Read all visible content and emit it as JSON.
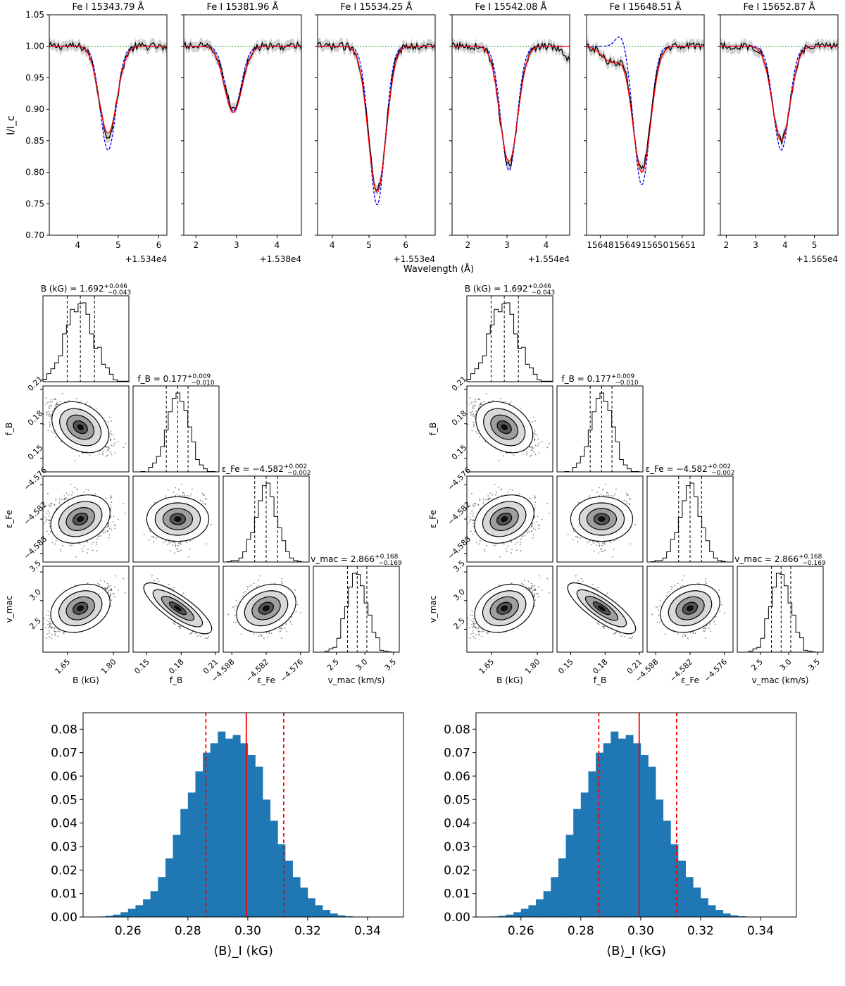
{
  "figure": {
    "spectra": {
      "ylabel": "I/I_c",
      "xlabel": "Wavelength (Å)",
      "y_ticks": [
        "1.05",
        "1.00",
        "0.95",
        "0.90",
        "0.85",
        "0.80",
        "0.75",
        "0.70"
      ],
      "ylim": [
        0.7,
        1.05
      ],
      "continuum_level": 1.0,
      "legend_colors": {
        "observed": "#000000",
        "best_fit": "#ff0000",
        "zero_field": "#0000ff",
        "continuum": "#2ca02c",
        "uncertainty": "#bdbdbd"
      }
    },
    "corner_params": [
      {
        "key": "B",
        "label": "B (kG)",
        "title": "B (kG) = 1.692",
        "err_up": "+0.046",
        "err_down": "−0.043",
        "ticks": [
          "1.65",
          "1.80"
        ],
        "tick_values": [
          1.65,
          1.8
        ],
        "range": [
          1.57,
          1.85
        ],
        "median": 1.692,
        "sigma": 0.045,
        "quantiles": [
          1.649,
          1.692,
          1.738
        ]
      },
      {
        "key": "fB",
        "label": "f_B",
        "title": "f_B = 0.177",
        "err_up": "+0.009",
        "err_down": "−0.010",
        "ticks": [
          "0.15",
          "0.18",
          "0.21"
        ],
        "tick_values": [
          0.15,
          0.18,
          0.21
        ],
        "range": [
          0.138,
          0.213
        ],
        "median": 0.177,
        "sigma": 0.0095,
        "quantiles": [
          0.167,
          0.177,
          0.186
        ]
      },
      {
        "key": "eFe",
        "label": "ε_Fe",
        "title": "ε_Fe = −4.582",
        "err_up": "+0.002",
        "err_down": "−0.002",
        "ticks": [
          "−4.588",
          "−4.582",
          "−4.576"
        ],
        "tick_values": [
          -4.588,
          -4.582,
          -4.576
        ],
        "range": [
          -4.5895,
          -4.5745
        ],
        "median": -4.582,
        "sigma": 0.002,
        "quantiles": [
          -4.584,
          -4.582,
          -4.58
        ]
      },
      {
        "key": "vmac",
        "label": "v_mac (km/s)",
        "title": "v_mac = 2.866",
        "err_up": "+0.168",
        "err_down": "−0.169",
        "ticks": [
          "2.5",
          "3.0",
          "3.5"
        ],
        "tick_values": [
          2.5,
          3.0,
          3.5
        ],
        "range": [
          2.1,
          3.6
        ],
        "median": 2.866,
        "sigma": 0.168,
        "quantiles": [
          2.697,
          2.866,
          3.034
        ]
      }
    ],
    "corner_ylabels": [
      "f_B",
      "ε_Fe",
      "v_mac"
    ],
    "bottom_hist": {
      "xlabel": "⟨B⟩_I (kG)"
    }
  },
  "chart_data": [
    {
      "type": "line",
      "title": "Fe I 15343.79 Å",
      "ylabel": "I/I_c",
      "xlabel": "Wavelength (Å)",
      "ylim": [
        0.7,
        1.05
      ],
      "xlim": [
        3.3,
        6.2
      ],
      "x_ticks": [
        "4",
        "5",
        "6"
      ],
      "x_tick_values": [
        4,
        5,
        6
      ],
      "x_offset": "+1.534e4",
      "line_center": 4.75,
      "observed_depth": 0.142,
      "model_depth": 0.138,
      "zero_field_depth": 0.165
    },
    {
      "type": "line",
      "title": "Fe I 15381.96 Å",
      "xlim": [
        1.7,
        4.6
      ],
      "x_ticks": [
        "2",
        "3",
        "4"
      ],
      "x_tick_values": [
        2,
        3,
        4
      ],
      "x_offset": "+1.538e4",
      "line_center": 2.92,
      "observed_depth": 0.098,
      "model_depth": 0.105,
      "zero_field_depth": 0.103
    },
    {
      "type": "line",
      "title": "Fe I 15534.25 Å",
      "xlim": [
        3.6,
        6.8
      ],
      "x_ticks": [
        "4",
        "5",
        "6"
      ],
      "x_tick_values": [
        4,
        5,
        6
      ],
      "x_offset": "+1.553e4",
      "line_center": 5.22,
      "observed_depth": 0.225,
      "model_depth": 0.232,
      "zero_field_depth": 0.252
    },
    {
      "type": "line",
      "title": "Fe I 15542.08 Å",
      "xlim": [
        1.6,
        4.6
      ],
      "x_ticks": [
        "2",
        "3",
        "4"
      ],
      "x_tick_values": [
        2,
        3,
        4
      ],
      "x_offset": "+1.554e4",
      "line_center": 3.05,
      "observed_depth": 0.19,
      "model_depth": 0.183,
      "zero_field_depth": 0.197
    },
    {
      "type": "line",
      "title": "Fe I 15648.51 Å",
      "xlim": [
        15647.5,
        15651.8
      ],
      "x_ticks": [
        "15648",
        "15649",
        "15650",
        "15651"
      ],
      "x_tick_values": [
        15648,
        15649,
        15650,
        15651
      ],
      "x_offset": "",
      "line_center": 15649.52,
      "observed_depth": 0.195,
      "model_depth": 0.2,
      "zero_field_depth": 0.22
    },
    {
      "type": "line",
      "title": "Fe I 15652.87 Å",
      "xlim": [
        1.8,
        5.8
      ],
      "x_ticks": [
        "2",
        "3",
        "4",
        "5"
      ],
      "x_tick_values": [
        2,
        3,
        4,
        5
      ],
      "x_offset": "+1.565e4",
      "line_center": 3.87,
      "observed_depth": 0.15,
      "model_depth": 0.15,
      "zero_field_depth": 0.165
    },
    {
      "type": "bar",
      "title": "",
      "xlabel": "⟨B⟩_I (kG)",
      "ylabel": "",
      "xlim": [
        0.245,
        0.352
      ],
      "ylim": [
        0,
        0.087
      ],
      "x_ticks": [
        "0.26",
        "0.28",
        "0.30",
        "0.32",
        "0.34"
      ],
      "x_tick_values": [
        0.26,
        0.28,
        0.3,
        0.32,
        0.34
      ],
      "y_ticks": [
        "0.00",
        "0.01",
        "0.02",
        "0.03",
        "0.04",
        "0.05",
        "0.06",
        "0.07",
        "0.08"
      ],
      "y_tick_values": [
        0,
        0.01,
        0.02,
        0.03,
        0.04,
        0.05,
        0.06,
        0.07,
        0.08
      ],
      "bin_width": 0.0025,
      "bins_start": 0.25,
      "values": [
        0.0002,
        0.0005,
        0.001,
        0.002,
        0.0035,
        0.005,
        0.0075,
        0.011,
        0.017,
        0.025,
        0.035,
        0.046,
        0.053,
        0.062,
        0.07,
        0.074,
        0.079,
        0.076,
        0.0775,
        0.074,
        0.069,
        0.064,
        0.05,
        0.041,
        0.031,
        0.024,
        0.017,
        0.0125,
        0.008,
        0.005,
        0.003,
        0.0015,
        0.0007,
        0.0003
      ],
      "median": 0.2995,
      "lower": 0.286,
      "upper": 0.312
    },
    {
      "type": "bar",
      "title": "",
      "xlabel": "⟨B⟩_I (kG)",
      "ylabel": "",
      "xlim": [
        0.245,
        0.352
      ],
      "ylim": [
        0,
        0.087
      ],
      "x_ticks": [
        "0.26",
        "0.28",
        "0.30",
        "0.32",
        "0.34"
      ],
      "x_tick_values": [
        0.26,
        0.28,
        0.3,
        0.32,
        0.34
      ],
      "y_ticks": [
        "0.00",
        "0.01",
        "0.02",
        "0.03",
        "0.04",
        "0.05",
        "0.06",
        "0.07",
        "0.08"
      ],
      "y_tick_values": [
        0,
        0.01,
        0.02,
        0.03,
        0.04,
        0.05,
        0.06,
        0.07,
        0.08
      ],
      "bin_width": 0.0025,
      "bins_start": 0.25,
      "values": [
        0.0002,
        0.0005,
        0.001,
        0.002,
        0.0035,
        0.005,
        0.0075,
        0.011,
        0.017,
        0.025,
        0.035,
        0.046,
        0.053,
        0.062,
        0.07,
        0.074,
        0.079,
        0.076,
        0.0775,
        0.074,
        0.069,
        0.064,
        0.05,
        0.041,
        0.031,
        0.024,
        0.017,
        0.0125,
        0.008,
        0.005,
        0.003,
        0.0015,
        0.0007,
        0.0003
      ],
      "median": 0.2995,
      "lower": 0.286,
      "upper": 0.312
    }
  ]
}
